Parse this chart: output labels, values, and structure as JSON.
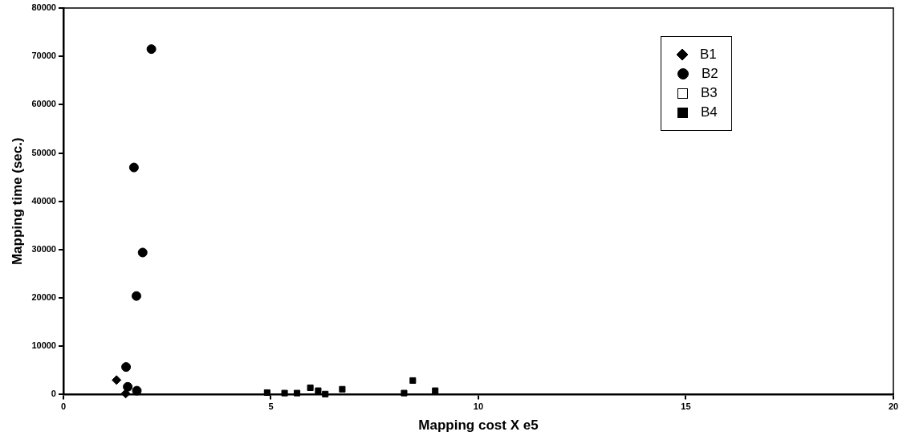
{
  "chart_data": {
    "type": "scatter",
    "xlabel": "Mapping cost X e5",
    "ylabel": "Mapping time (sec.)",
    "xlim": [
      0,
      20
    ],
    "xticks": [
      0,
      5,
      10,
      15,
      20
    ],
    "ylim": [
      0,
      80000
    ],
    "yticks": [
      0,
      10000,
      20000,
      30000,
      40000,
      50000,
      60000,
      70000,
      80000
    ],
    "grid": false,
    "legend": "top right",
    "series": [
      {
        "name": "B1",
        "color": "#000000",
        "marker": "diamond",
        "x": [
          1.28,
          1.5
        ],
        "values": [
          3000,
          200
        ]
      },
      {
        "name": "B2",
        "color": "#000000",
        "marker": "circle",
        "x": [
          2.12,
          1.7,
          1.91,
          1.76,
          1.51,
          1.55,
          1.77
        ],
        "values": [
          71500,
          47000,
          29400,
          20400,
          5700,
          1600,
          800
        ]
      },
      {
        "name": "B3",
        "color": "#ffffff",
        "marker": "square"
      },
      {
        "name": "B4",
        "color": "#000000",
        "marker": "square",
        "x": [
          4.91,
          5.33,
          5.63,
          5.95,
          6.14,
          6.31,
          6.72,
          8.21,
          8.42,
          8.96
        ],
        "values": [
          400,
          300,
          300,
          1400,
          800,
          100,
          1100,
          300,
          2900,
          800
        ]
      }
    ]
  }
}
